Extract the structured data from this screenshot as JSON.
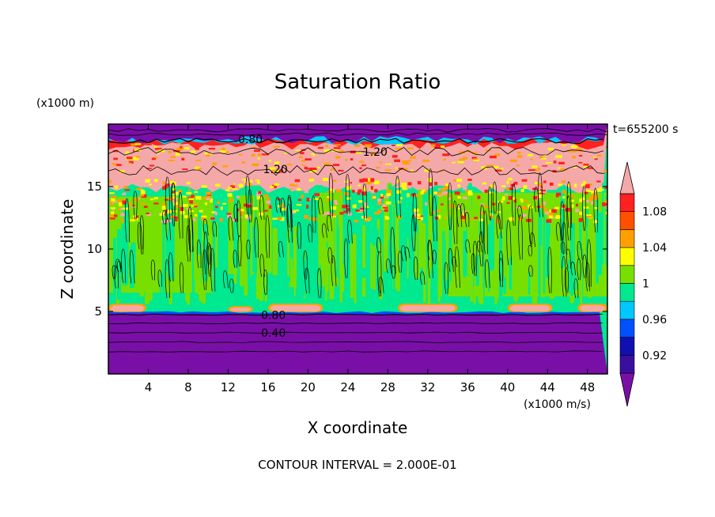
{
  "chart_data": {
    "type": "heatmap",
    "title": "Saturation Ratio",
    "xlabel": "X coordinate",
    "ylabel": "Z coordinate",
    "x_unit": "(x1000 m/s)",
    "y_unit": "(x1000 m)",
    "time_label": "t=655200 s",
    "footer": "CONTOUR INTERVAL = 2.000E-01",
    "xlim": [
      0,
      50
    ],
    "ylim": [
      0,
      20
    ],
    "x_ticks": [
      4,
      8,
      12,
      16,
      20,
      24,
      28,
      32,
      36,
      40,
      44,
      48
    ],
    "y_ticks": [
      5,
      10,
      15
    ],
    "colorbar": {
      "levels": [
        0.9,
        0.92,
        0.94,
        0.96,
        0.98,
        1.0,
        1.02,
        1.04,
        1.06,
        1.08,
        1.1
      ],
      "labels": [
        "0.92",
        "0.96",
        "1",
        "1.04",
        "1.08"
      ],
      "label_values": [
        0.92,
        0.96,
        1.0,
        1.04,
        1.08
      ],
      "colors": [
        "#7a0fa8",
        "#3a0fa0",
        "#1010b0",
        "#0050ff",
        "#00c8ff",
        "#00e890",
        "#78e000",
        "#ffff00",
        "#ffa000",
        "#ff5000",
        "#ff2020",
        "#f5a8a8"
      ]
    },
    "layers": [
      {
        "zmin": 0,
        "zmax": 4.9,
        "value": "0.90",
        "color": "#7a0fa8"
      },
      {
        "zmin": 4.9,
        "zmax": 15.5,
        "value": "0.98-1.02",
        "color": "#00e890"
      },
      {
        "zmin": 13,
        "zmax": 15.5,
        "value": "1.02-1.10",
        "color": "#78e000"
      },
      {
        "zmin": 15.5,
        "zmax": 18,
        "value": ">1.10",
        "color": "#f5a8a8"
      },
      {
        "zmin": 18,
        "zmax": 20,
        "value": "<0.90",
        "color": "#7a0fa8"
      }
    ],
    "contour_labels": [
      {
        "text": "0.80",
        "x": 13.0,
        "z": 18.8
      },
      {
        "text": "1.20",
        "x": 25.5,
        "z": 17.8
      },
      {
        "text": "1.20",
        "x": 15.5,
        "z": 16.4
      },
      {
        "text": "0.80",
        "x": 15.3,
        "z": 4.7
      },
      {
        "text": "0.40",
        "x": 15.3,
        "z": 3.3
      }
    ],
    "cloud_base_patches": [
      {
        "x0": 0.0,
        "x1": 3.8,
        "z": 5.2
      },
      {
        "x0": 12.0,
        "x1": 14.5,
        "z": 5.0
      },
      {
        "x0": 16.0,
        "x1": 21.5,
        "z": 5.2
      },
      {
        "x0": 29.0,
        "x1": 35.0,
        "z": 5.2
      },
      {
        "x0": 40.0,
        "x1": 44.5,
        "z": 5.2
      },
      {
        "x0": 47.0,
        "x1": 50.0,
        "z": 5.2
      }
    ]
  }
}
